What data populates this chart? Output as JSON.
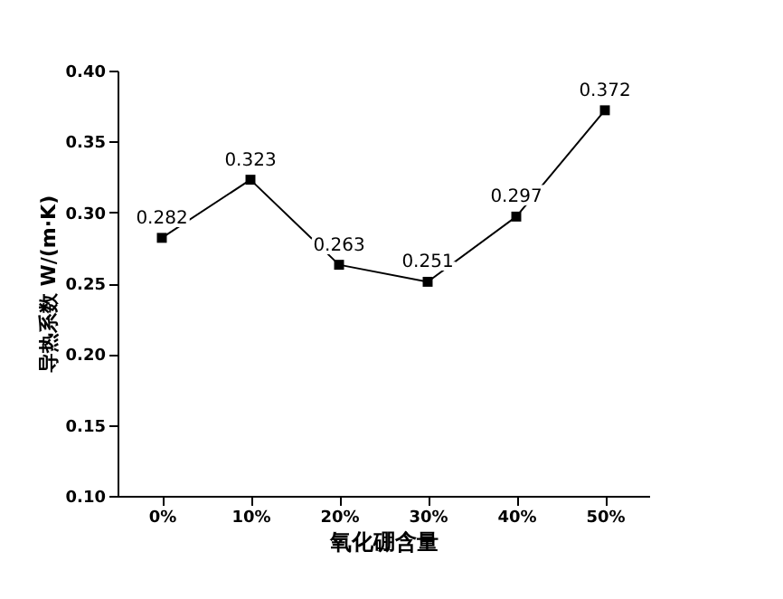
{
  "chart_data": {
    "type": "line",
    "xlabel": "氧化硼含量",
    "ylabel": "导热系数 W/(m·K)",
    "categories": [
      "0%",
      "10%",
      "20%",
      "30%",
      "40%",
      "50%"
    ],
    "series": [
      {
        "color": "#000000",
        "values": [
          0.282,
          0.323,
          0.263,
          0.251,
          0.297,
          0.372
        ]
      }
    ],
    "ylim": [
      0.1,
      0.4
    ],
    "yticks": [
      {
        "value": 0.1,
        "label": "0.10"
      },
      0.15,
      {
        "value": 0.2,
        "label": "0.20"
      },
      0.25,
      {
        "value": 0.3,
        "label": "0.30"
      },
      0.35,
      {
        "value": 0.4,
        "label": "0.40"
      }
    ],
    "data_labels": true,
    "marker": "square",
    "line_style": "solid",
    "grid": false,
    "legend": false
  }
}
